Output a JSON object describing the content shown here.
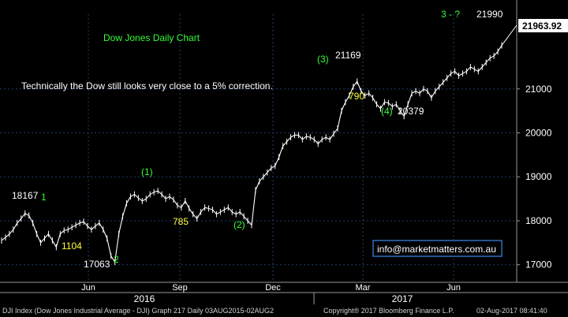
{
  "chart_data": {
    "type": "line",
    "title": "Dow Jones Daily Chart",
    "subtitle": "Technically the Dow still looks very close to a 5% correction.",
    "ylim": [
      16600,
      22700
    ],
    "y_ticks": [
      17000,
      18000,
      19000,
      20000,
      21000
    ],
    "x_month_labels": [
      "Jun",
      "Sep",
      "Dec",
      "Mar",
      "Jun"
    ],
    "x_year_labels": [
      "2016",
      "2017"
    ],
    "last_price": "21963.92",
    "grid": true,
    "series": [
      {
        "values": [
          17550,
          17620,
          17700,
          17800,
          17950,
          18050,
          18167,
          18120,
          17950,
          17700,
          17500,
          17600,
          17700,
          17550,
          17400,
          17700,
          17780,
          17800,
          17850,
          17900,
          17950,
          17980,
          17880,
          17800,
          17880,
          17950,
          17800,
          17600,
          17200,
          17063,
          17700,
          18100,
          18400,
          18550,
          18600,
          18520,
          18450,
          18500,
          18600,
          18650,
          18680,
          18600,
          18500,
          18550,
          18480,
          18350,
          18300,
          18450,
          18280,
          18150,
          18050,
          18200,
          18300,
          18280,
          18250,
          18150,
          18200,
          18250,
          18300,
          18200,
          18150,
          18200,
          18100,
          18000,
          17900,
          18700,
          18900,
          19000,
          19100,
          19200,
          19250,
          19450,
          19700,
          19800,
          19900,
          19950,
          19950,
          19850,
          19920,
          19900,
          19850,
          19750,
          19850,
          19900,
          19850,
          19980,
          20100,
          20500,
          20700,
          20850,
          21050,
          21169,
          20950,
          20850,
          20900,
          20800,
          20650,
          20550,
          20700,
          20680,
          20600,
          20650,
          20500,
          20379,
          20650,
          20900,
          20950,
          20900,
          21000,
          20950,
          20800,
          20950,
          21050,
          21150,
          21250,
          21350,
          21400,
          21300,
          21350,
          21400,
          21500,
          21450,
          21400,
          21500,
          21600,
          21700,
          21750,
          21850,
          21990
        ]
      }
    ],
    "annotations": [
      {
        "text": "18167",
        "color": "#ffffff"
      },
      {
        "text": "1",
        "color": "#33ff33"
      },
      {
        "text": "1104",
        "color": "#ffff33"
      },
      {
        "text": "17063",
        "color": "#ffffff"
      },
      {
        "text": "2",
        "color": "#33ff33"
      },
      {
        "text": "(1)",
        "color": "#33ff33"
      },
      {
        "text": "785",
        "color": "#ffff33"
      },
      {
        "text": "(2)",
        "color": "#33ff33"
      },
      {
        "text": "(3)",
        "color": "#33ff33"
      },
      {
        "text": "21169",
        "color": "#ffffff"
      },
      {
        "text": "790",
        "color": "#ffff33"
      },
      {
        "text": "(4)",
        "color": "#33ff33"
      },
      {
        "text": "20379",
        "color": "#ffffff"
      },
      {
        "text": "3 - ?",
        "color": "#33ff33"
      },
      {
        "text": "21990",
        "color": "#ffffff"
      }
    ],
    "info_box": "info@marketmatters.com.au"
  },
  "footer": {
    "left": "DJI Index (Dow Jones Industrial Average - DJI) Graph 217  Daily 03AUG2015-02AUG2",
    "middle": "Copyright® 2017 Bloomberg Finance L.P.",
    "right": "02-Aug-2017 08:41:40"
  },
  "colors": {
    "background": "#000000",
    "grid": "#1e3d6e",
    "axis": "#9a9a9a",
    "price": "#ffffff",
    "title": "#33ff33",
    "info_box_border": "#2f6fbf",
    "info_box_text": "#ffffff"
  }
}
